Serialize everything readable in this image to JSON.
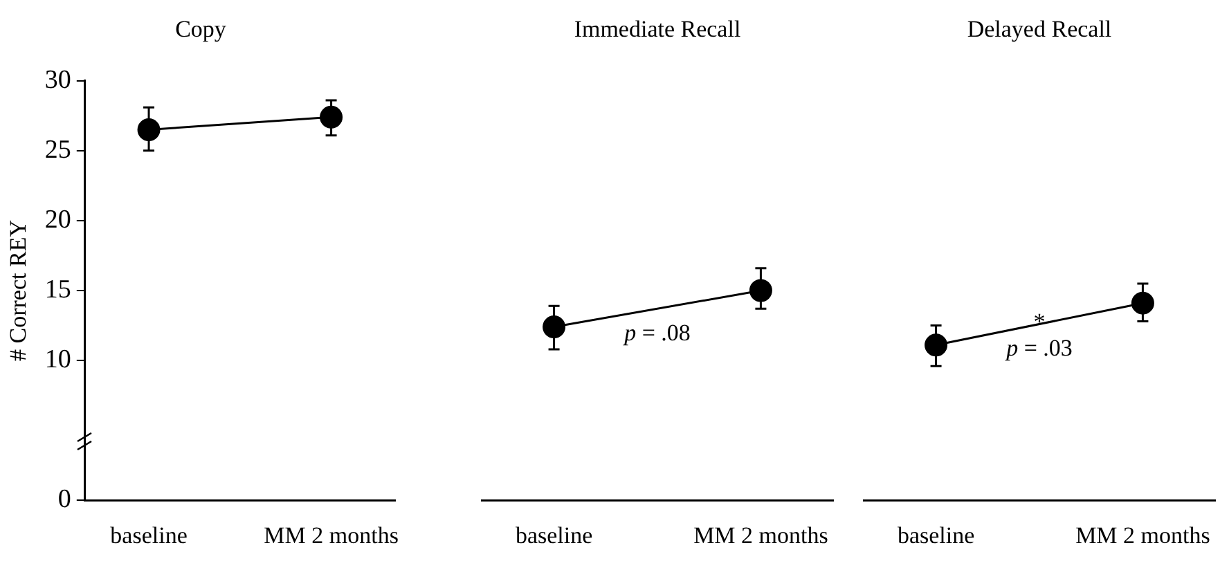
{
  "chart_data": [
    {
      "type": "line",
      "title": "Copy",
      "ylabel": "# Correct REY",
      "categories": [
        "baseline",
        "MM 2 months"
      ],
      "ylim": [
        0,
        30
      ],
      "yticks": [
        0,
        10,
        15,
        20,
        25,
        30
      ],
      "grid": false,
      "legend": false,
      "marker": "circle",
      "series": [
        {
          "color": "#000000",
          "values": [
            26.5,
            27.4
          ],
          "errors": [
            [
              25.0,
              28.1
            ],
            [
              26.1,
              28.6
            ]
          ]
        }
      ]
    },
    {
      "type": "line",
      "title": "Immediate Recall",
      "categories": [
        "baseline",
        "MM 2 months"
      ],
      "ylim": [
        0,
        30
      ],
      "tick_labels": "x",
      "grid": false,
      "legend": false,
      "marker": "circle",
      "annotations": [
        "p = .08"
      ],
      "series": [
        {
          "color": "#000000",
          "values": [
            12.4,
            15.0
          ],
          "errors": [
            [
              10.8,
              13.9
            ],
            [
              13.7,
              16.6
            ]
          ]
        }
      ]
    },
    {
      "type": "line",
      "title": "Delayed Recall",
      "categories": [
        "baseline",
        "MM 2 months"
      ],
      "ylim": [
        0,
        30
      ],
      "tick_labels": "x",
      "grid": false,
      "legend": false,
      "marker": "circle",
      "annotations": [
        "*",
        "p = .03"
      ],
      "series": [
        {
          "color": "#000000",
          "values": [
            11.1,
            14.1
          ],
          "errors": [
            [
              9.6,
              12.5
            ],
            [
              12.8,
              15.5
            ]
          ]
        }
      ]
    }
  ]
}
